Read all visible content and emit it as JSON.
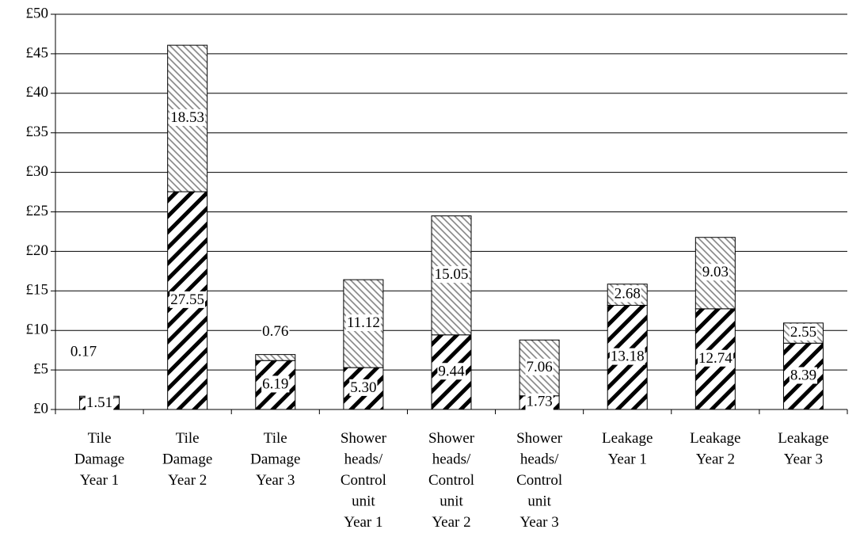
{
  "chart_data": {
    "type": "bar",
    "stacked": true,
    "grid": true,
    "categories": [
      "Tile\nDamage\nYear 1",
      "Tile\nDamage\nYear 2",
      "Tile\nDamage\nYear 3",
      "Shower\nheads/\nControl\nunit\nYear 1",
      "Shower\nheads/\nControl\nunit\nYear 2",
      "Shower\nheads/\nControl\nunit\nYear 3",
      "Leakage\nYear 1",
      "Leakage\nYear 2",
      "Leakage\nYear 3"
    ],
    "series": [
      {
        "color": "#000000",
        "values": [
          1.51,
          27.55,
          6.19,
          5.3,
          9.44,
          1.73,
          13.18,
          12.74,
          8.39
        ],
        "value_labels": [
          "1.51",
          "27.55",
          "6.19",
          "5.30",
          "9.44",
          "1.73",
          "13.18",
          "12.74",
          "8.39"
        ]
      },
      {
        "color": "#808080",
        "values": [
          0.17,
          18.53,
          0.76,
          11.12,
          15.05,
          7.06,
          2.68,
          9.03,
          2.55
        ],
        "value_labels": [
          "0.17",
          "18.53",
          "0.76",
          "11.12",
          "15.05",
          "7.06",
          "2.68",
          "9.03",
          "2.55"
        ]
      }
    ],
    "ylim": [
      0,
      50
    ],
    "yticks": [
      {
        "value": 0,
        "label": "£0"
      },
      {
        "value": 5,
        "label": "£5"
      },
      {
        "value": 10,
        "label": "£10"
      },
      {
        "value": 15,
        "label": "£15"
      },
      {
        "value": 20,
        "label": "£20"
      },
      {
        "value": 25,
        "label": "£25"
      },
      {
        "value": 30,
        "label": "£30"
      },
      {
        "value": 35,
        "label": "£35"
      },
      {
        "value": 40,
        "label": "£40"
      },
      {
        "value": 45,
        "label": "£45"
      },
      {
        "value": 50,
        "label": "£50"
      }
    ]
  }
}
